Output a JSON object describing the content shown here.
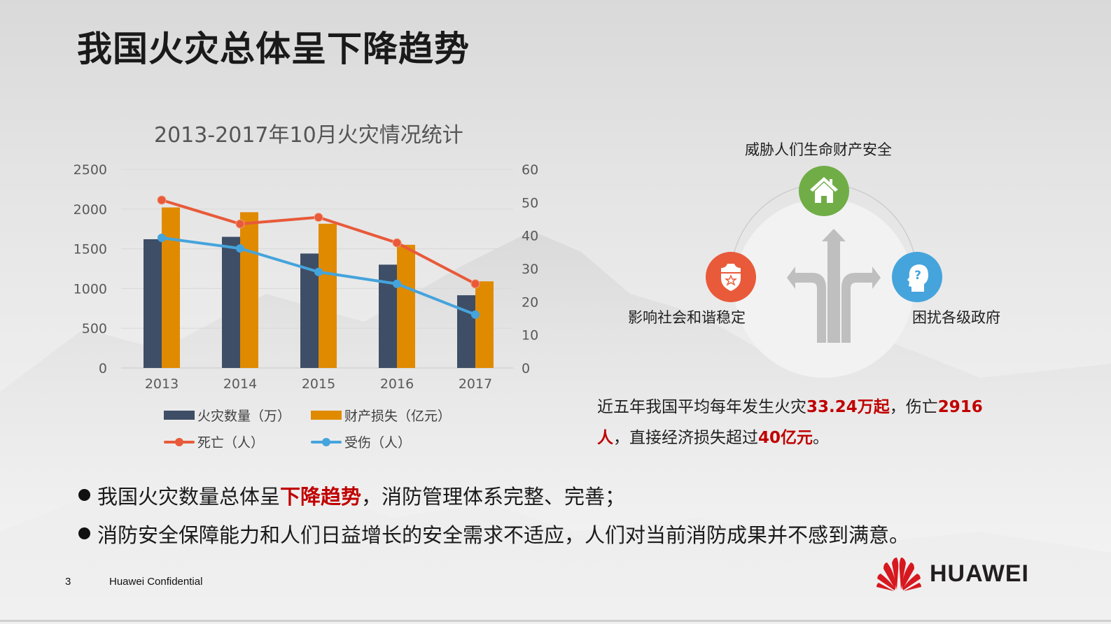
{
  "slide": {
    "title": "我国火灾总体呈下降趋势",
    "page_number": "3",
    "confidential": "Huawei Confidential",
    "logo_text": "HUAWEI"
  },
  "colors": {
    "fires_bar": "#3e4e66",
    "loss_bar": "#e08a00",
    "deaths_line": "#e85a3a",
    "injuries_line": "#45a4dc",
    "highlight_red": "#c00000",
    "icon_green": "#70ad47",
    "icon_red": "#e85a3a",
    "icon_blue": "#45a4dc"
  },
  "chart_data": {
    "type": "bar",
    "title": "2013-2017年10月火灾情况统计",
    "categories": [
      "2013",
      "2014",
      "2015",
      "2016",
      "2017"
    ],
    "series": [
      {
        "name": "火灾数量（万）",
        "type": "bar",
        "axis": "left",
        "values": [
          1620,
          1650,
          1440,
          1300,
          915
        ]
      },
      {
        "name": "财产损失（亿元）",
        "type": "bar",
        "axis": "left",
        "values": [
          2020,
          1960,
          1815,
          1550,
          1090
        ]
      },
      {
        "name": "死亡（人）",
        "type": "line",
        "axis": "right",
        "values": [
          50.7,
          43.5,
          45.5,
          37.8,
          25.4
        ]
      },
      {
        "name": "受伤（人）",
        "type": "line",
        "axis": "right",
        "values": [
          39.3,
          36.1,
          29.0,
          25.4,
          16.1
        ]
      }
    ],
    "left_axis": {
      "ylim": [
        0,
        2500
      ],
      "ticks": [
        "0",
        "500",
        "1000",
        "1500",
        "2000",
        "2500"
      ]
    },
    "right_axis": {
      "ylim": [
        0,
        60
      ],
      "ticks": [
        "0",
        "10",
        "20",
        "30",
        "40",
        "50",
        "60"
      ]
    },
    "xlabel": "",
    "ylabel": "",
    "grid": true,
    "legend_position": "bottom"
  },
  "legend": {
    "fires": "火灾数量（万）",
    "loss": "财产损失（亿元）",
    "deaths": "死亡（人）",
    "injuries": "受伤（人）"
  },
  "diagram": {
    "top_label": "威胁人们生命财产安全",
    "left_label": "影响社会和谐稳定",
    "right_label": "困扰各级政府",
    "icons": [
      "house-icon",
      "police-badge-icon",
      "head-question-icon",
      "split-arrows-icon"
    ]
  },
  "summary": {
    "part1": "近五年我国平均每年发生火灾",
    "fires_avg": "33.24万起",
    "part2": "，伤亡",
    "casualties": "2916",
    "casualties_unit": "人",
    "part3": "，直接经济损失超过",
    "loss": "40亿元",
    "part4": "。"
  },
  "bullets": [
    {
      "pre": "我国火灾数量总体呈",
      "highlight": "下降趋势",
      "post": "，消防管理体系完整、完善；"
    },
    {
      "pre": "消防安全保障能力和人们日益增长的安全需求不适应，人们对当前消防成果并不感到满意。",
      "highlight": "",
      "post": ""
    }
  ]
}
